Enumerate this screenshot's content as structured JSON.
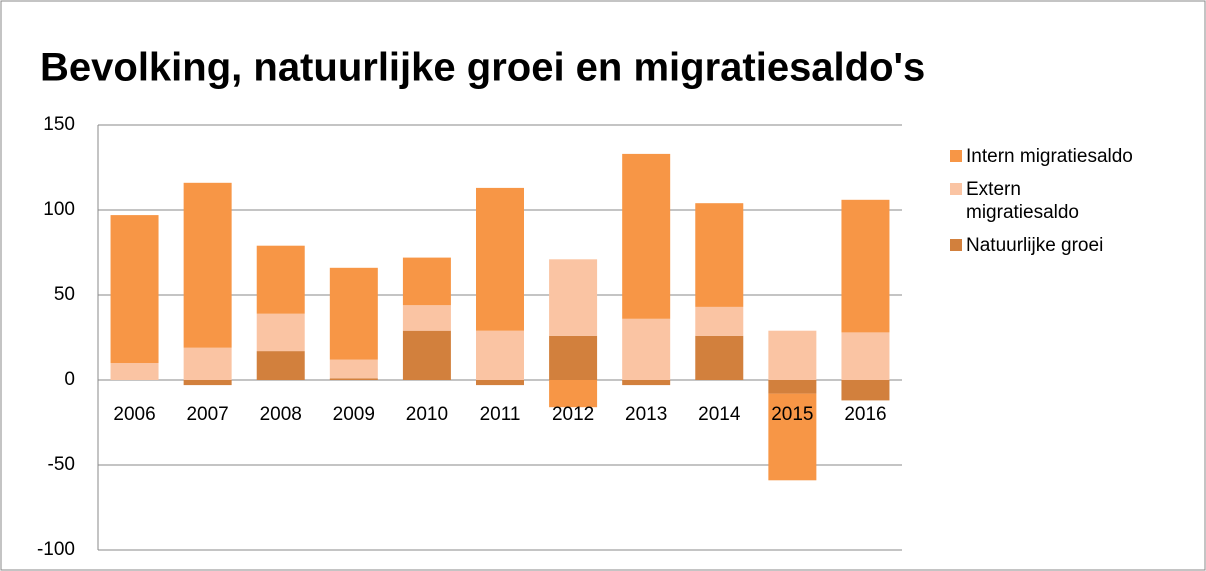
{
  "chart_data": {
    "type": "bar",
    "stacked": true,
    "title": "Bevolking, natuurlijke groei en migratiesaldo's",
    "categories": [
      "2006",
      "2007",
      "2008",
      "2009",
      "2010",
      "2011",
      "2012",
      "2013",
      "2014",
      "2015",
      "2016"
    ],
    "series": [
      {
        "name": "Natuurlijke groei",
        "color": "#d2803d",
        "values": [
          0,
          -3,
          17,
          1,
          29,
          -3,
          26,
          -3,
          26,
          -8,
          -12
        ]
      },
      {
        "name": "Extern migratiesaldo",
        "color": "#fac4a3",
        "values": [
          10,
          19,
          22,
          11,
          15,
          29,
          45,
          36,
          17,
          29,
          28
        ]
      },
      {
        "name": "Intern migratiesaldo",
        "color": "#f79646",
        "values": [
          87,
          97,
          40,
          54,
          28,
          84,
          -16,
          97,
          61,
          -51,
          78
        ]
      }
    ],
    "ylim": [
      -100,
      150
    ],
    "yticks": [
      -100,
      -50,
      0,
      50,
      100,
      150
    ],
    "grid": true
  }
}
